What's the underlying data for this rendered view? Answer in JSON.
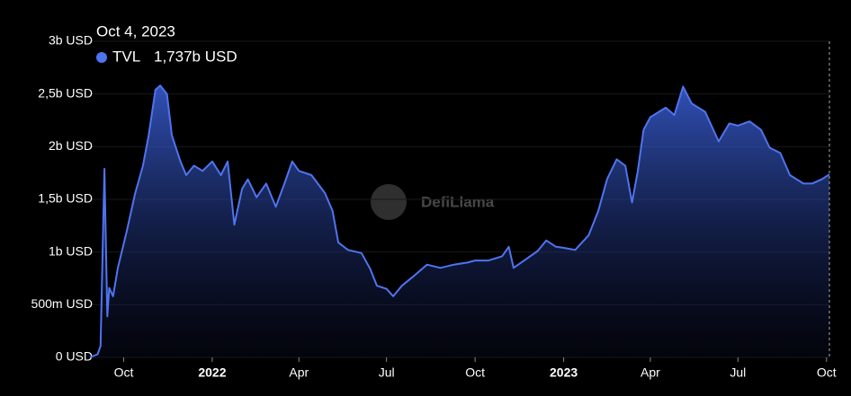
{
  "chart_data": {
    "type": "area",
    "watermark": "DefiLlama",
    "tooltip": {
      "date": "Oct 4, 2023",
      "series": "TVL",
      "value": "1,737b USD"
    },
    "series": [
      {
        "name": "TVL",
        "color": "#4f74f0",
        "x": [
          "2021-08-27",
          "2021-09-04",
          "2021-09-07",
          "2021-09-11",
          "2021-09-14",
          "2021-09-16",
          "2021-09-20",
          "2021-09-25",
          "2021-10-04",
          "2021-10-13",
          "2021-10-21",
          "2021-10-27",
          "2021-11-03",
          "2021-11-08",
          "2021-11-15",
          "2021-11-20",
          "2021-11-29",
          "2021-12-05",
          "2021-12-13",
          "2021-12-22",
          "2022-01-01",
          "2022-01-10",
          "2022-01-17",
          "2022-01-24",
          "2022-02-01",
          "2022-02-07",
          "2022-02-16",
          "2022-02-26",
          "2022-03-08",
          "2022-03-17",
          "2022-03-25",
          "2022-04-01",
          "2022-04-14",
          "2022-04-28",
          "2022-05-06",
          "2022-05-12",
          "2022-05-22",
          "2022-06-05",
          "2022-06-14",
          "2022-06-21",
          "2022-07-01",
          "2022-07-08",
          "2022-07-17",
          "2022-07-29",
          "2022-08-12",
          "2022-08-26",
          "2022-09-09",
          "2022-09-23",
          "2022-10-01",
          "2022-10-15",
          "2022-10-29",
          "2022-11-05",
          "2022-11-10",
          "2022-11-21",
          "2022-12-05",
          "2022-12-14",
          "2022-12-24",
          "2023-01-01",
          "2023-01-13",
          "2023-01-27",
          "2023-02-06",
          "2023-02-15",
          "2023-02-25",
          "2023-03-06",
          "2023-03-13",
          "2023-03-19",
          "2023-03-25",
          "2023-04-01",
          "2023-04-17",
          "2023-04-26",
          "2023-05-05",
          "2023-05-14",
          "2023-05-28",
          "2023-06-11",
          "2023-06-22",
          "2023-07-01",
          "2023-07-13",
          "2023-07-25",
          "2023-08-03",
          "2023-08-14",
          "2023-08-24",
          "2023-09-07",
          "2023-09-16",
          "2023-09-26",
          "2023-10-04"
        ],
        "values": [
          0,
          0.03,
          0.11,
          1.79,
          0.39,
          0.66,
          0.58,
          0.85,
          1.19,
          1.56,
          1.82,
          2.11,
          2.54,
          2.58,
          2.5,
          2.11,
          1.86,
          1.73,
          1.82,
          1.77,
          1.86,
          1.73,
          1.86,
          1.26,
          1.6,
          1.69,
          1.52,
          1.65,
          1.43,
          1.65,
          1.86,
          1.77,
          1.73,
          1.56,
          1.39,
          1.09,
          1.02,
          0.99,
          0.84,
          0.68,
          0.65,
          0.58,
          0.68,
          0.77,
          0.88,
          0.85,
          0.88,
          0.9,
          0.92,
          0.92,
          0.96,
          1.05,
          0.85,
          0.92,
          1.01,
          1.11,
          1.05,
          1.04,
          1.02,
          1.16,
          1.39,
          1.69,
          1.88,
          1.82,
          1.47,
          1.77,
          2.16,
          2.28,
          2.37,
          2.3,
          2.57,
          2.41,
          2.33,
          2.05,
          2.22,
          2.2,
          2.24,
          2.16,
          1.99,
          1.94,
          1.73,
          1.65,
          1.65,
          1.69,
          1.737
        ]
      }
    ],
    "xlim": [
      "2021-08-27",
      "2023-10-04"
    ],
    "xticks": [
      {
        "value": "2021-10-01",
        "label": "Oct"
      },
      {
        "value": "2022-01-01",
        "label": "2022"
      },
      {
        "value": "2022-04-01",
        "label": "Apr"
      },
      {
        "value": "2022-07-01",
        "label": "Jul"
      },
      {
        "value": "2022-10-01",
        "label": "Oct"
      },
      {
        "value": "2023-01-01",
        "label": "2023"
      },
      {
        "value": "2023-04-01",
        "label": "Apr"
      },
      {
        "value": "2023-07-01",
        "label": "Jul"
      },
      {
        "value": "2023-10-01",
        "label": "Oct"
      }
    ],
    "ylim": [
      0,
      3
    ],
    "yticks": [
      {
        "value": 0,
        "label": "0 USD"
      },
      {
        "value": 0.5,
        "label": "500m USD"
      },
      {
        "value": 1,
        "label": "1b USD"
      },
      {
        "value": 1.5,
        "label": "1,5b USD"
      },
      {
        "value": 2,
        "label": "2b USD"
      },
      {
        "value": 2.5,
        "label": "2,5b USD"
      },
      {
        "value": 3,
        "label": "3b USD"
      }
    ],
    "grid": true,
    "crosshair": "2023-10-04"
  }
}
